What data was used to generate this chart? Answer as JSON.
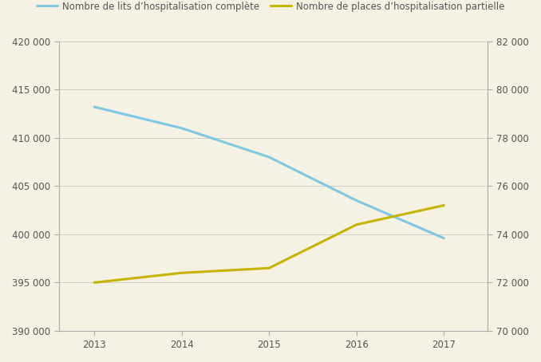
{
  "years": [
    2013,
    2014,
    2015,
    2016,
    2017
  ],
  "lits_complets": [
    413200,
    411000,
    408000,
    403500,
    399600
  ],
  "places_partielles": [
    72000,
    72400,
    72600,
    74400,
    75200
  ],
  "line1_color": "#7ec8e3",
  "line2_color": "#c8b400",
  "legend1": "Nombre de lits d’hospitalisation complète",
  "legend2": "Nombre de places d’hospitalisation partielle",
  "background_color": "#f5f2e3",
  "grid_color": "#cccccc",
  "spine_color": "#aaaaaa",
  "tick_color": "#aaaaaa",
  "label_color": "#555555",
  "ylim_left": [
    390000,
    420000
  ],
  "ylim_right": [
    70000,
    82000
  ],
  "yticks_left": [
    390000,
    395000,
    400000,
    405000,
    410000,
    415000,
    420000
  ],
  "yticks_right": [
    70000,
    72000,
    74000,
    76000,
    78000,
    80000,
    82000
  ],
  "line_width": 2.2,
  "tick_label_fontsize": 8.5,
  "legend_fontsize": 8.5
}
